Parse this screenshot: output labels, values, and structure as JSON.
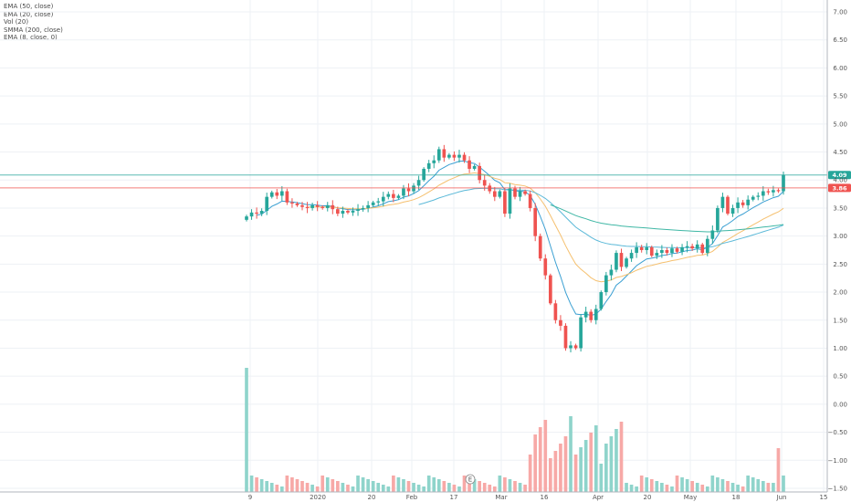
{
  "legend": [
    "EMA (50, close)",
    "EMA (20, close)",
    "Vol (20)",
    "SMMA (200, close)",
    "EMA (8, close, 0)"
  ],
  "colors": {
    "up": "#26a69a",
    "down": "#ef5350",
    "up_volume": "#8fd4cb",
    "down_volume": "#f7a9a7",
    "ema50": "#5bb9d8",
    "ema20": "#f5c06f",
    "smma200": "#3fb7a5",
    "ema8": "#3a9fd2",
    "hline_green": "#26a69a",
    "hline_red": "#ef5350",
    "grid": "#eef1f5"
  },
  "chart_data": {
    "type": "candlestick",
    "y_ticks": [
      "7.00",
      "6.50",
      "6.00",
      "5.50",
      "5.00",
      "4.50",
      "4.00",
      "3.50",
      "3.00",
      "2.50",
      "2.00",
      "1.50",
      "1.00",
      "0.50",
      "0.00",
      "−0.50",
      "−1.00",
      "−1.50"
    ],
    "x_ticks": [
      "9",
      "2020",
      "20",
      "Feb",
      "17",
      "Mar",
      "16",
      "Apr",
      "20",
      "May",
      "18",
      "Jun",
      "15"
    ],
    "marker_label": "E",
    "price_lines": [
      {
        "label": "4.09",
        "value": 4.09,
        "color": "green"
      },
      {
        "label": "3.86",
        "value": 3.86,
        "color": "red"
      }
    ],
    "closes": [
      3.35,
      3.42,
      3.4,
      3.45,
      3.7,
      3.78,
      3.72,
      3.8,
      3.6,
      3.58,
      3.55,
      3.52,
      3.5,
      3.55,
      3.52,
      3.5,
      3.55,
      3.48,
      3.4,
      3.45,
      3.42,
      3.45,
      3.48,
      3.5,
      3.55,
      3.6,
      3.62,
      3.7,
      3.75,
      3.68,
      3.72,
      3.85,
      3.8,
      3.9,
      4.0,
      4.2,
      4.3,
      4.35,
      4.55,
      4.4,
      4.45,
      4.4,
      4.45,
      4.35,
      4.2,
      4.25,
      4.0,
      3.9,
      3.8,
      3.7,
      3.8,
      3.4,
      3.85,
      3.7,
      3.8,
      3.75,
      3.5,
      3.0,
      2.6,
      2.3,
      1.8,
      1.5,
      1.4,
      1.0,
      1.05,
      1.0,
      1.55,
      1.65,
      1.5,
      1.7,
      2.0,
      2.3,
      2.4,
      2.7,
      2.45,
      2.6,
      2.7,
      2.8,
      2.75,
      2.8,
      2.65,
      2.7,
      2.75,
      2.7,
      2.78,
      2.72,
      2.8,
      2.82,
      2.78,
      2.85,
      2.7,
      2.95,
      3.1,
      3.5,
      3.7,
      3.4,
      3.5,
      3.6,
      3.55,
      3.65,
      3.7,
      3.72,
      3.8,
      3.78,
      3.82,
      3.8,
      4.09
    ],
    "moving_average_lines": [
      "EMA (8, close, 0)",
      "EMA (20, close)",
      "EMA (50, close)",
      "SMMA (200, close)"
    ]
  }
}
